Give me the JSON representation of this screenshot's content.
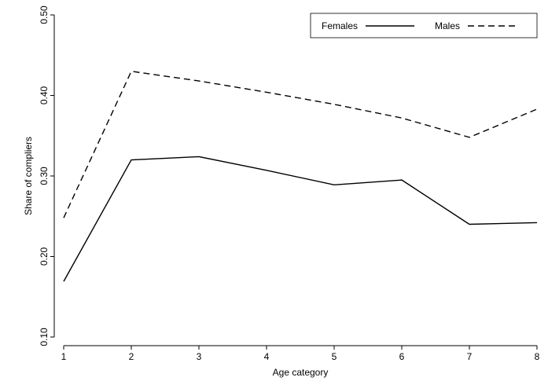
{
  "chart_data": {
    "type": "line",
    "x_label": "Age category",
    "y_label": "Share of compliers",
    "x": [
      1,
      2,
      3,
      4,
      5,
      6,
      7,
      8
    ],
    "series": [
      {
        "name": "Females",
        "color": "#000000",
        "line_style": "solid",
        "values": [
          0.169,
          0.32,
          0.324,
          0.307,
          0.289,
          0.295,
          0.24,
          0.242
        ]
      },
      {
        "name": "Males",
        "color": "#000000",
        "line_style": "dashed",
        "values": [
          0.248,
          0.43,
          0.418,
          0.404,
          0.389,
          0.372,
          0.348,
          0.383
        ]
      }
    ],
    "xlim": [
      1,
      8
    ],
    "xticks": [
      1,
      2,
      3,
      4,
      5,
      6,
      7,
      8
    ],
    "ylim": [
      0.1,
      0.5
    ],
    "yticks": [
      {
        "value": 0.1,
        "label": "0.10"
      },
      {
        "value": 0.2,
        "label": "0.20"
      },
      {
        "value": 0.3,
        "label": "0.30"
      },
      {
        "value": 0.4,
        "label": "0.40"
      },
      {
        "value": 0.5,
        "label": "0.50"
      }
    ],
    "grid": false,
    "legend": "upper right"
  }
}
